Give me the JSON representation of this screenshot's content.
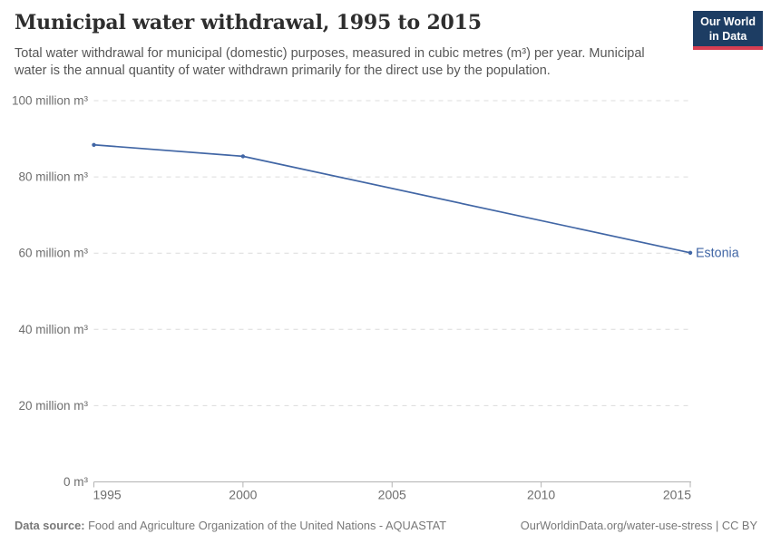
{
  "header": {
    "title": "Municipal water withdrawal, 1995 to 2015",
    "subtitle": "Total water withdrawal for municipal (domestic) purposes, measured in cubic metres (m³) per year. Municipal water is the annual quantity of water withdrawn primarily for the direct use by the population.",
    "logo": {
      "line1": "Our World",
      "line2": "in Data",
      "bg_color": "#1d3d63",
      "stripe_color": "#d73e52"
    }
  },
  "chart_data": {
    "type": "line",
    "title": "Municipal water withdrawal, 1995 to 2015",
    "xlabel": "",
    "ylabel": "",
    "xlim": [
      1995,
      2015
    ],
    "ylim": [
      0,
      100
    ],
    "grid": "horizontal-dashed",
    "legend_position": "end-of-line-label",
    "x_ticks": [
      1995,
      2000,
      2005,
      2010,
      2015
    ],
    "y_ticks": [
      0,
      20,
      40,
      60,
      80,
      100
    ],
    "y_tick_labels": [
      "0 m³",
      "20 million m³",
      "40 million m³",
      "60 million m³",
      "80 million m³",
      "100 million m³"
    ],
    "series": [
      {
        "name": "Estonia",
        "color": "#4166a5",
        "points": [
          {
            "x": 1995,
            "y": 88.4
          },
          {
            "x": 2000,
            "y": 85.4
          },
          {
            "x": 2015,
            "y": 60.1
          }
        ]
      }
    ]
  },
  "footer": {
    "source_label": "Data source:",
    "source_text": " Food and Agriculture Organization of the United Nations - AQUASTAT",
    "link_text": "OurWorldinData.org/water-use-stress | CC BY"
  }
}
